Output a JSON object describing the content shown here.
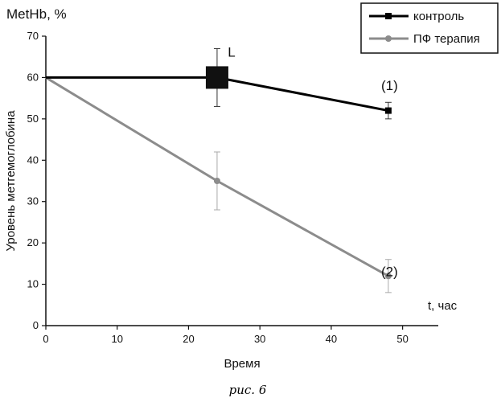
{
  "chart_data": {
    "type": "line",
    "title": "MetHb, %",
    "xlabel": "Время",
    "ylabel": "Уровень метгемоглобина",
    "x_unit_label": "t, час",
    "xlim": [
      0,
      55
    ],
    "ylim": [
      0,
      70
    ],
    "xticks": [
      0,
      10,
      20,
      30,
      40,
      50
    ],
    "yticks": [
      0,
      10,
      20,
      30,
      40,
      50,
      60,
      70
    ],
    "grid": false,
    "legend_position": "top-right",
    "series": [
      {
        "name": "контроль",
        "color": "#000000",
        "marker": "square",
        "points": [
          {
            "x": 0,
            "y": 60,
            "err": 0
          },
          {
            "x": 24,
            "y": 60,
            "err": 7
          },
          {
            "x": 48,
            "y": 52,
            "err": 2
          }
        ]
      },
      {
        "name": "ПФ терапия",
        "color": "#8c8c8c",
        "marker": "circle",
        "points": [
          {
            "x": 0,
            "y": 60,
            "err": 0
          },
          {
            "x": 24,
            "y": 35,
            "err": 7
          },
          {
            "x": 48,
            "y": 12,
            "err": 4
          }
        ]
      }
    ],
    "annotations": [
      {
        "text": "L",
        "x": 25.5,
        "y": 65
      },
      {
        "text": "(1)",
        "x": 47,
        "y": 57
      },
      {
        "text": "(2)",
        "x": 47,
        "y": 12
      }
    ],
    "highlight_marker": {
      "x": 24,
      "y": 60
    },
    "signature": "рис. 6"
  }
}
